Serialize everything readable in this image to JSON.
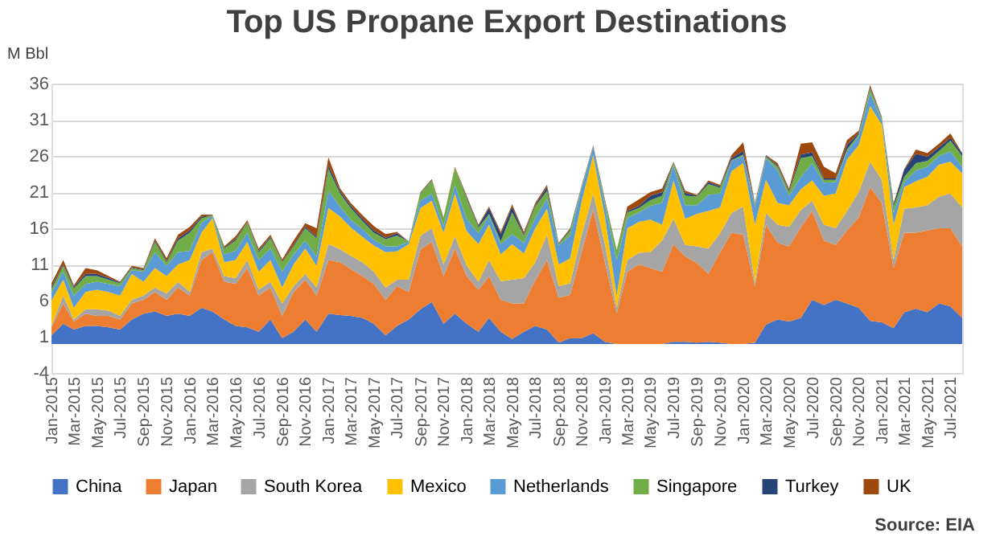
{
  "chart_data": {
    "type": "area",
    "title": "Top US Propane Export Destinations",
    "ylabel": "M Bbl",
    "stacked": true,
    "grid": "y",
    "legend": "bottom",
    "x": [
      "2015-01",
      "2015-02",
      "2015-03",
      "2015-04",
      "2015-05",
      "2015-06",
      "2015-07",
      "2015-08",
      "2015-09",
      "2015-10",
      "2015-11",
      "2015-12",
      "2016-01",
      "2016-02",
      "2016-03",
      "2016-04",
      "2016-05",
      "2016-06",
      "2016-07",
      "2016-08",
      "2016-09",
      "2016-10",
      "2016-11",
      "2016-12",
      "2017-01",
      "2017-02",
      "2017-03",
      "2017-04",
      "2017-05",
      "2017-06",
      "2017-07",
      "2017-08",
      "2017-09",
      "2017-10",
      "2017-11",
      "2017-12",
      "2018-01",
      "2018-02",
      "2018-03",
      "2018-04",
      "2018-05",
      "2018-06",
      "2018-07",
      "2018-08",
      "2018-09",
      "2018-10",
      "2018-11",
      "2018-12",
      "2019-01",
      "2019-02",
      "2019-03",
      "2019-04",
      "2019-05",
      "2019-06",
      "2019-07",
      "2019-08",
      "2019-09",
      "2019-10",
      "2019-11",
      "2019-12",
      "2020-01",
      "2020-02",
      "2020-03",
      "2020-04",
      "2020-05",
      "2020-06",
      "2020-07",
      "2020-08",
      "2020-09",
      "2020-10",
      "2020-11",
      "2020-12",
      "2021-01",
      "2021-02",
      "2021-03",
      "2021-04",
      "2021-05",
      "2021-06",
      "2021-07",
      "2021-08"
    ],
    "xlim": [
      "2015-01",
      "2021-08"
    ],
    "xticks": [
      {
        "value": "2015-01",
        "label": "Jan-2015"
      },
      {
        "value": "2015-03",
        "label": "Mar-2015"
      },
      {
        "value": "2015-05",
        "label": "May-2015"
      },
      {
        "value": "2015-07",
        "label": "Jul-2015"
      },
      {
        "value": "2015-09",
        "label": "Sep-2015"
      },
      {
        "value": "2015-11",
        "label": "Nov-2015"
      },
      {
        "value": "2016-01",
        "label": "Jan-2016"
      },
      {
        "value": "2016-03",
        "label": "Mar-2016"
      },
      {
        "value": "2016-05",
        "label": "May-2016"
      },
      {
        "value": "2016-07",
        "label": "Jul-2016"
      },
      {
        "value": "2016-09",
        "label": "Sep-2016"
      },
      {
        "value": "2016-11",
        "label": "Nov-2016"
      },
      {
        "value": "2017-01",
        "label": "Jan-2017"
      },
      {
        "value": "2017-03",
        "label": "Mar-2017"
      },
      {
        "value": "2017-05",
        "label": "May-2017"
      },
      {
        "value": "2017-07",
        "label": "Jul-2017"
      },
      {
        "value": "2017-09",
        "label": "Sep-2017"
      },
      {
        "value": "2017-11",
        "label": "Nov-2017"
      },
      {
        "value": "2018-01",
        "label": "Jan-2018"
      },
      {
        "value": "2018-03",
        "label": "Mar-2018"
      },
      {
        "value": "2018-05",
        "label": "May-2018"
      },
      {
        "value": "2018-07",
        "label": "Jul-2018"
      },
      {
        "value": "2018-09",
        "label": "Sep-2018"
      },
      {
        "value": "2018-11",
        "label": "Nov-2018"
      },
      {
        "value": "2019-01",
        "label": "Jan-2019"
      },
      {
        "value": "2019-03",
        "label": "Mar-2019"
      },
      {
        "value": "2019-05",
        "label": "May-2019"
      },
      {
        "value": "2019-07",
        "label": "Jul-2019"
      },
      {
        "value": "2019-09",
        "label": "Sep-2019"
      },
      {
        "value": "2019-11",
        "label": "Nov-2019"
      },
      {
        "value": "2020-01",
        "label": "Jan-2020"
      },
      {
        "value": "2020-03",
        "label": "Mar-2020"
      },
      {
        "value": "2020-05",
        "label": "May-2020"
      },
      {
        "value": "2020-07",
        "label": "Jul-2020"
      },
      {
        "value": "2020-09",
        "label": "Sep-2020"
      },
      {
        "value": "2020-11",
        "label": "Nov-2020"
      },
      {
        "value": "2021-01",
        "label": "Jan-2021"
      },
      {
        "value": "2021-03",
        "label": "Mar-2021"
      },
      {
        "value": "2021-05",
        "label": "May-2021"
      },
      {
        "value": "2021-07",
        "label": "Jul-2021"
      }
    ],
    "ylim": [
      -4,
      36
    ],
    "yticks": [
      -4,
      1,
      6,
      11,
      16,
      21,
      26,
      31,
      36
    ],
    "series": [
      {
        "name": "China",
        "color": "#4472c4",
        "values": [
          1.2,
          2.8,
          2.0,
          2.5,
          2.5,
          2.3,
          2.0,
          3.4,
          4.2,
          4.5,
          3.9,
          4.2,
          3.9,
          5.0,
          4.5,
          3.4,
          2.5,
          2.3,
          1.7,
          3.4,
          0.8,
          1.7,
          3.4,
          1.7,
          4.2,
          4.0,
          3.9,
          3.6,
          2.8,
          1.2,
          2.5,
          3.4,
          4.8,
          5.8,
          2.8,
          4.2,
          2.8,
          1.7,
          3.6,
          1.7,
          0.7,
          1.7,
          2.5,
          2.0,
          0.2,
          0.8,
          0.8,
          1.5,
          0.3,
          0.0,
          0.0,
          0.0,
          0.0,
          0.0,
          0.3,
          0.3,
          0.2,
          0.3,
          0.2,
          0.0,
          0.0,
          0.2,
          2.7,
          3.4,
          3.1,
          3.6,
          6.1,
          5.4,
          6.1,
          5.6,
          5.0,
          3.2,
          3.0,
          2.2,
          4.4,
          4.9,
          4.4,
          5.6,
          5.2,
          3.6
        ]
      },
      {
        "name": "Japan",
        "color": "#ed7d31",
        "values": [
          1.1,
          2.8,
          1.1,
          1.7,
          1.4,
          1.6,
          1.4,
          2.2,
          1.9,
          2.7,
          2.2,
          3.6,
          2.8,
          6.6,
          8.2,
          5.2,
          5.8,
          8.2,
          5.0,
          4.4,
          3.1,
          5.5,
          5.5,
          5.0,
          7.4,
          7.3,
          6.5,
          5.8,
          5.5,
          4.9,
          5.5,
          3.8,
          8.3,
          8.3,
          6.6,
          9.0,
          6.6,
          5.8,
          5.8,
          4.4,
          4.9,
          3.9,
          6.3,
          9.6,
          6.2,
          6.0,
          12.0,
          17.1,
          11.0,
          4.2,
          10.0,
          11.0,
          10.5,
          10.0,
          13.5,
          11.8,
          11.0,
          9.4,
          12.5,
          15.4,
          15.1,
          7.8,
          13.8,
          10.6,
          10.4,
          12.5,
          12.3,
          8.9,
          7.6,
          10.1,
          12.5,
          18.5,
          16.5,
          8.3,
          11.0,
          10.5,
          11.3,
          10.4,
          10.8,
          9.9
        ]
      },
      {
        "name": "South Korea",
        "color": "#a5a5a5",
        "values": [
          0.2,
          1.1,
          0.3,
          0.6,
          0.9,
          0.7,
          0.5,
          0.5,
          0.6,
          0.6,
          0.9,
          0.8,
          0.5,
          1.1,
          0.5,
          0.8,
          0.8,
          1.1,
          0.8,
          0.8,
          1.7,
          0.8,
          0.8,
          1.1,
          2.2,
          1.8,
          1.8,
          1.9,
          1.7,
          1.7,
          0.9,
          1.7,
          1.9,
          1.9,
          1.6,
          1.7,
          1.5,
          1.1,
          2.2,
          2.6,
          3.3,
          3.5,
          2.5,
          3.5,
          1.6,
          1.6,
          2.4,
          2.2,
          2.5,
          0.8,
          1.6,
          1.6,
          2.2,
          4.3,
          3.5,
          1.6,
          2.3,
          3.5,
          2.6,
          2.7,
          3.9,
          0.5,
          1.6,
          2.5,
          2.7,
          2.4,
          1.4,
          2.2,
          2.3,
          2.7,
          3.5,
          3.5,
          3.2,
          1.1,
          3.3,
          3.5,
          3.5,
          4.4,
          4.8,
          5.4
        ]
      },
      {
        "name": "Mexico",
        "color": "#ffc000",
        "values": [
          3.5,
          2.2,
          1.6,
          2.4,
          2.7,
          2.6,
          2.8,
          3.6,
          1.9,
          2.7,
          2.4,
          2.4,
          4.4,
          2.7,
          4.2,
          1.9,
          2.5,
          2.5,
          2.5,
          3.0,
          2.2,
          3.0,
          3.5,
          3.0,
          5.0,
          4.5,
          3.9,
          3.5,
          3.6,
          4.9,
          3.9,
          4.9,
          3.8,
          3.8,
          4.4,
          5.9,
          4.7,
          5.2,
          4.9,
          3.7,
          4.9,
          3.4,
          4.7,
          3.6,
          3.0,
          3.4,
          4.6,
          5.3,
          3.8,
          1.7,
          4.4,
          4.3,
          4.5,
          2.2,
          5.3,
          3.6,
          4.5,
          5.2,
          3.6,
          5.8,
          6.0,
          8.0,
          4.6,
          3.0,
          3.0,
          2.9,
          2.8,
          4.0,
          4.8,
          7.1,
          6.5,
          7.7,
          7.6,
          4.9,
          3.0,
          3.6,
          3.9,
          4.4,
          4.4,
          4.7
        ]
      },
      {
        "name": "Netherlands",
        "color": "#5b9bd5",
        "values": [
          1.1,
          1.1,
          1.7,
          1.1,
          1.1,
          1.1,
          1.3,
          0.5,
          1.4,
          2.2,
          1.4,
          1.7,
          1.3,
          1.4,
          0.3,
          1.1,
          1.3,
          1.3,
          1.6,
          1.6,
          2.2,
          1.4,
          1.1,
          1.3,
          2.4,
          1.4,
          1.1,
          1.1,
          0.8,
          0.8,
          0.7,
          0.4,
          1.0,
          1.0,
          0.9,
          1.2,
          1.7,
          1.5,
          1.2,
          1.4,
          1.4,
          1.5,
          1.4,
          1.4,
          2.6,
          3.2,
          1.8,
          1.2,
          1.6,
          4.8,
          1.4,
          1.3,
          1.9,
          3.0,
          2.1,
          1.9,
          1.2,
          2.2,
          1.9,
          1.4,
          1.0,
          2.5,
          3.0,
          4.5,
          1.3,
          1.7,
          2.4,
          1.8,
          1.6,
          1.1,
          1.2,
          1.8,
          0.6,
          1.6,
          0.7,
          1.5,
          1.4,
          1.2,
          1.4,
          0.9
        ]
      },
      {
        "name": "Singapore",
        "color": "#70ad47",
        "values": [
          0.5,
          0.8,
          1.0,
          1.1,
          0.8,
          0.6,
          0.4,
          0.3,
          0.2,
          1.4,
          0.5,
          1.6,
          2.5,
          0.6,
          0.1,
          0.8,
          1.4,
          1.4,
          1.1,
          1.4,
          1.3,
          1.1,
          1.7,
          2.5,
          3.0,
          1.8,
          1.6,
          1.1,
          1.0,
          1.0,
          1.5,
          0.0,
          1.0,
          1.8,
          1.1,
          2.4,
          2.8,
          0.8,
          0.3,
          0.4,
          3.0,
          1.0,
          1.6,
          1.1,
          0.2,
          0.7,
          0.2,
          0.1,
          0.5,
          1.5,
          0.8,
          0.6,
          0.8,
          1.0,
          0.3,
          1.3,
          1.2,
          1.5,
          0.8,
          0.1,
          0.2,
          0.3,
          0.2,
          0.5,
          0.5,
          2.6,
          1.0,
          0.4,
          0.3,
          0.3,
          0.3,
          0.6,
          0.3,
          0.9,
          0.7,
          1.0,
          0.8,
          0.7,
          1.5,
          1.5
        ]
      },
      {
        "name": "Turkey",
        "color": "#264478",
        "values": [
          0.3,
          0.2,
          0.2,
          0.3,
          0.3,
          0.2,
          0.1,
          0.1,
          0.1,
          0.2,
          0.2,
          0.3,
          0.3,
          0.2,
          0.0,
          0.1,
          0.2,
          0.1,
          0.2,
          0.2,
          0.1,
          0.2,
          0.2,
          0.2,
          0.5,
          0.3,
          0.3,
          0.3,
          0.3,
          0.2,
          0.3,
          0.0,
          0.1,
          0.1,
          0.0,
          0.0,
          0.2,
          0.2,
          0.8,
          1.0,
          0.8,
          0.2,
          0.2,
          0.5,
          0.1,
          0.2,
          0.1,
          0.0,
          0.1,
          0.0,
          0.2,
          0.3,
          0.6,
          0.5,
          0.1,
          0.4,
          0.1,
          0.3,
          0.2,
          0.3,
          0.5,
          0.1,
          0.1,
          0.2,
          0.2,
          0.5,
          0.5,
          0.2,
          0.2,
          0.6,
          0.2,
          0.2,
          0.1,
          0.3,
          1.0,
          1.3,
          0.6,
          0.5,
          0.4,
          0.4
        ]
      },
      {
        "name": "UK",
        "color": "#9e480e",
        "values": [
          0.5,
          0.6,
          0.2,
          0.8,
          0.5,
          0.3,
          0.1,
          0.2,
          0.2,
          0.3,
          0.4,
          0.5,
          0.5,
          0.3,
          0.1,
          0.2,
          0.4,
          0.2,
          0.3,
          0.3,
          0.3,
          0.6,
          0.5,
          1.2,
          1.1,
          0.4,
          0.4,
          0.5,
          0.6,
          0.5,
          0.2,
          0.0,
          0.1,
          0.1,
          0.1,
          0.1,
          0.2,
          0.2,
          0.2,
          0.3,
          0.3,
          0.3,
          0.3,
          0.3,
          0.1,
          0.1,
          0.1,
          0.1,
          0.2,
          0.0,
          0.6,
          0.9,
          0.5,
          0.5,
          0.1,
          0.3,
          0.1,
          0.2,
          0.2,
          0.4,
          1.2,
          0.1,
          0.1,
          0.3,
          0.3,
          1.5,
          1.4,
          1.6,
          0.7,
          0.7,
          0.3,
          0.3,
          0.1,
          0.2,
          0.1,
          0.6,
          0.5,
          0.5,
          0.6,
          0.0
        ]
      }
    ],
    "annotations": [
      "Source: EIA"
    ]
  }
}
